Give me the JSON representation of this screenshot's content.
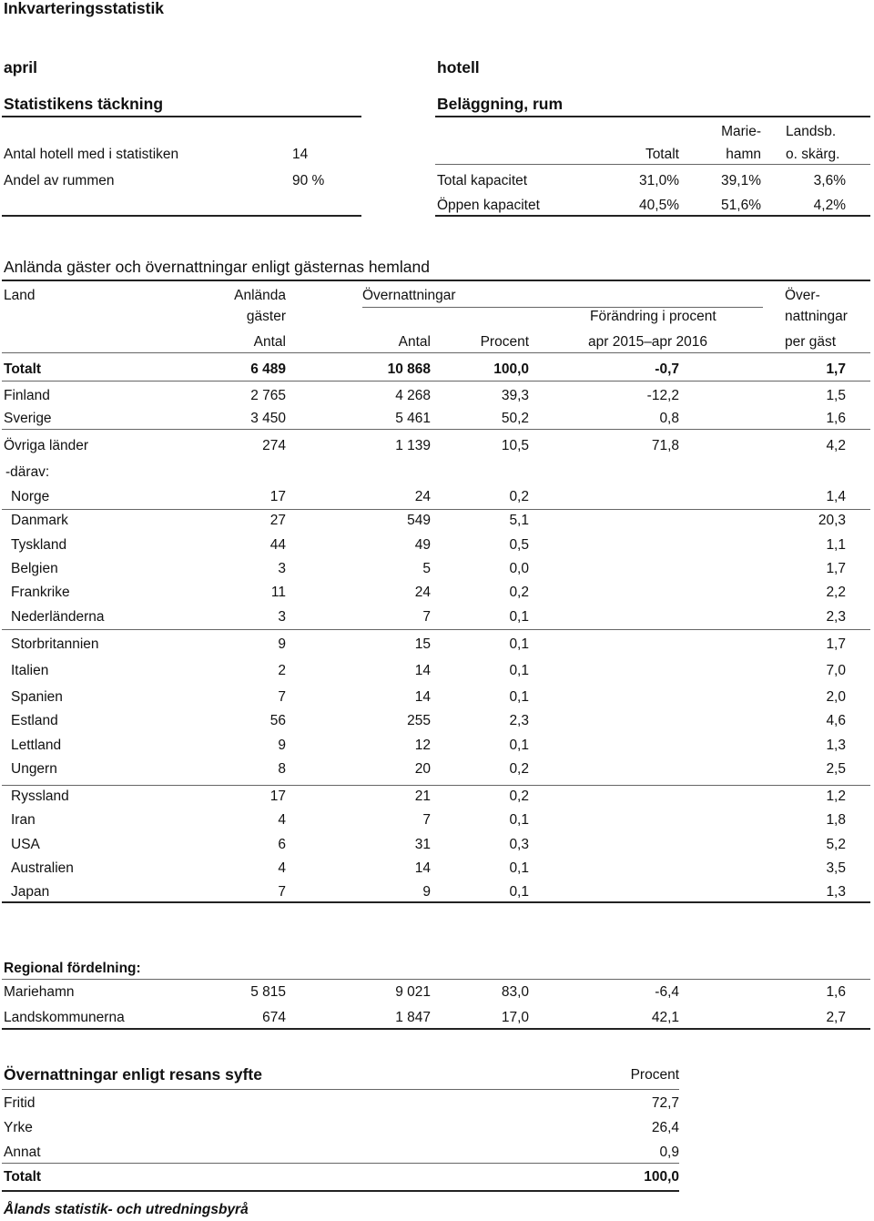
{
  "title": "Inkvarteringsstatistik",
  "period": "april",
  "category": "hotell",
  "coverage": {
    "heading": "Statistikens täckning",
    "rows": [
      {
        "label": "Antal hotell med i statistiken",
        "value": "14"
      },
      {
        "label": "Andel av rummen",
        "value": "90 %"
      }
    ]
  },
  "occupancy": {
    "heading": "Beläggning, rum",
    "col_total": "Totalt",
    "col_mh_line1": "Marie-",
    "col_mh_line2": "hamn",
    "col_ls_line1": "Landsb.",
    "col_ls_line2": "o. skärg.",
    "rows": [
      {
        "label": "Total kapacitet",
        "total": "31,0%",
        "mariehamn": "39,1%",
        "landsb": "3,6%"
      },
      {
        "label": "Öppen kapacitet",
        "total": "40,5%",
        "mariehamn": "51,6%",
        "landsb": "4,2%"
      }
    ]
  },
  "main": {
    "heading": "Anlända gäster och övernattningar enligt gästernas hemland",
    "h_land": "Land",
    "h_arrived_1": "Anlända",
    "h_arrived_2": "gäster",
    "h_nights": "Övernattningar",
    "h_change": "Förändring i procent",
    "h_per_1": "Över-",
    "h_per_2": "nattningar",
    "sub_antal1": "Antal",
    "sub_antal2": "Antal",
    "sub_procent": "Procent",
    "sub_period": "apr 2015–apr 2016",
    "sub_per": "per gäst",
    "total": {
      "land": "Totalt",
      "arrived": "6 489",
      "nights": "10 868",
      "pct": "100,0",
      "change": "-0,7",
      "per": "1,7"
    },
    "rows": [
      {
        "land": "Finland",
        "arrived": "2 765",
        "nights": "4 268",
        "pct": "39,3",
        "change": "-12,2",
        "per": "1,5"
      },
      {
        "land": "Sverige",
        "arrived": "3 450",
        "nights": "5 461",
        "pct": "50,2",
        "change": "0,8",
        "per": "1,6"
      },
      {
        "land": "Övriga länder",
        "arrived": "274",
        "nights": "1 139",
        "pct": "10,5",
        "change": "71,8",
        "per": "4,2"
      }
    ],
    "darav": "-därav:",
    "sub_rows": [
      {
        "land": "Norge",
        "arrived": "17",
        "nights": "24",
        "pct": "0,2",
        "per": "1,4"
      },
      {
        "land": "Danmark",
        "arrived": "27",
        "nights": "549",
        "pct": "5,1",
        "per": "20,3"
      },
      {
        "land": "Tyskland",
        "arrived": "44",
        "nights": "49",
        "pct": "0,5",
        "per": "1,1"
      },
      {
        "land": "Belgien",
        "arrived": "3",
        "nights": "5",
        "pct": "0,0",
        "per": "1,7"
      },
      {
        "land": "Frankrike",
        "arrived": "11",
        "nights": "24",
        "pct": "0,2",
        "per": "2,2"
      },
      {
        "land": "Nederländerna",
        "arrived": "3",
        "nights": "7",
        "pct": "0,1",
        "per": "2,3"
      },
      {
        "land": "Storbritannien",
        "arrived": "9",
        "nights": "15",
        "pct": "0,1",
        "per": "1,7"
      },
      {
        "land": "Italien",
        "arrived": "2",
        "nights": "14",
        "pct": "0,1",
        "per": "7,0"
      },
      {
        "land": "Spanien",
        "arrived": "7",
        "nights": "14",
        "pct": "0,1",
        "per": "2,0"
      },
      {
        "land": "Estland",
        "arrived": "56",
        "nights": "255",
        "pct": "2,3",
        "per": "4,6"
      },
      {
        "land": "Lettland",
        "arrived": "9",
        "nights": "12",
        "pct": "0,1",
        "per": "1,3"
      },
      {
        "land": "Ungern",
        "arrived": "8",
        "nights": "20",
        "pct": "0,2",
        "per": "2,5"
      },
      {
        "land": "Ryssland",
        "arrived": "17",
        "nights": "21",
        "pct": "0,2",
        "per": "1,2"
      },
      {
        "land": "Iran",
        "arrived": "4",
        "nights": "7",
        "pct": "0,1",
        "per": "1,8"
      },
      {
        "land": "USA",
        "arrived": "6",
        "nights": "31",
        "pct": "0,3",
        "per": "5,2"
      },
      {
        "land": "Australien",
        "arrived": "4",
        "nights": "14",
        "pct": "0,1",
        "per": "3,5"
      },
      {
        "land": "Japan",
        "arrived": "7",
        "nights": "9",
        "pct": "0,1",
        "per": "1,3"
      }
    ]
  },
  "regional": {
    "heading": "Regional fördelning:",
    "rows": [
      {
        "land": "Mariehamn",
        "arrived": "5 815",
        "nights": "9 021",
        "pct": "83,0",
        "change": "-6,4",
        "per": "1,6"
      },
      {
        "land": "Landskommunerna",
        "arrived": "674",
        "nights": "1 847",
        "pct": "17,0",
        "change": "42,1",
        "per": "2,7"
      }
    ]
  },
  "purpose": {
    "heading": "Övernattningar enligt resans syfte",
    "col": "Procent",
    "rows": [
      {
        "label": "Fritid",
        "value": "72,7"
      },
      {
        "label": "Yrke",
        "value": "26,4"
      },
      {
        "label": "Annat",
        "value": "0,9"
      }
    ],
    "total_label": "Totalt",
    "total_value": "100,0"
  },
  "footer": "Ålands statistik- och utredningsbyrå"
}
